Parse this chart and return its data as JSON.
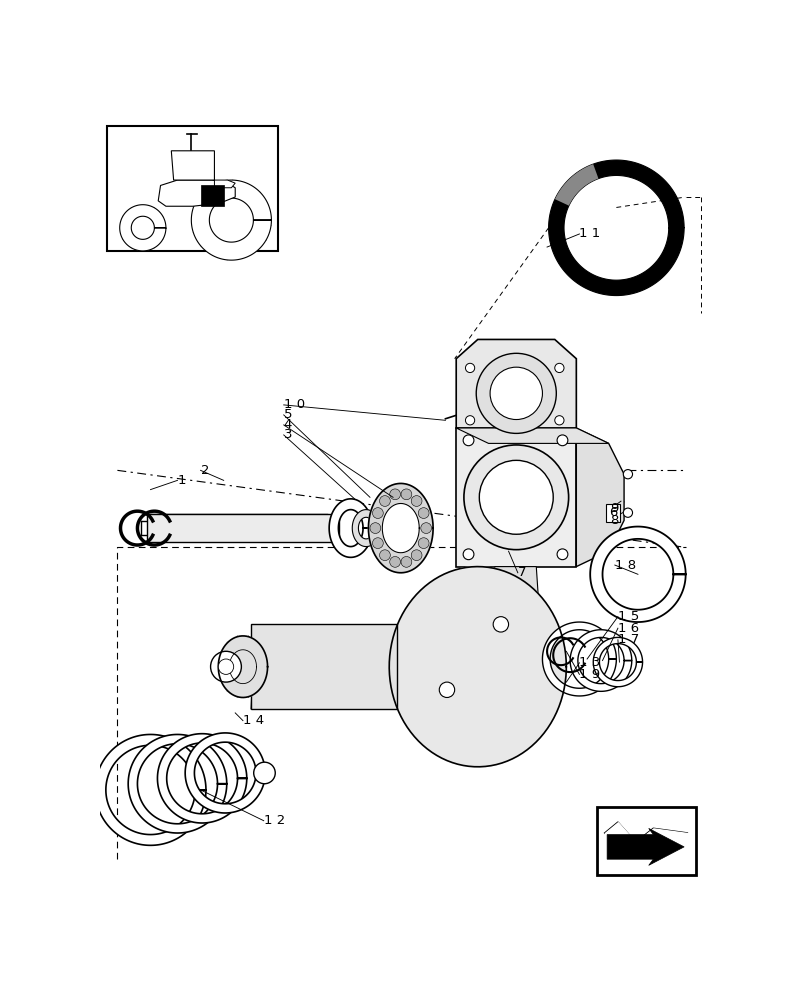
{
  "bg_color": "#ffffff",
  "lc": "#000000",
  "fig_width": 7.88,
  "fig_height": 10.0,
  "dpi": 100
}
